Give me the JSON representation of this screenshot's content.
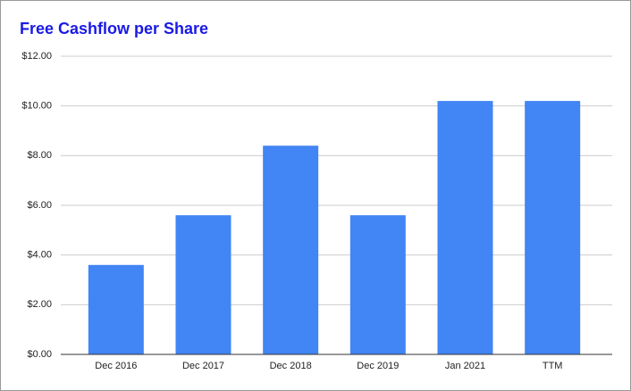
{
  "chart_data": {
    "type": "bar",
    "title": "Free Cashflow per Share",
    "categories": [
      "Dec 2016",
      "Dec 2017",
      "Dec 2018",
      "Dec 2019",
      "Jan 2021",
      "TTM"
    ],
    "values": [
      3.6,
      5.6,
      8.4,
      5.6,
      10.2,
      10.2
    ],
    "color": "#4285f4",
    "ylim": [
      0,
      12
    ],
    "yticks": [
      {
        "value": 0,
        "label": "$0.00"
      },
      {
        "value": 2,
        "label": "$2.00"
      },
      {
        "value": 4,
        "label": "$4.00"
      },
      {
        "value": 6,
        "label": "$6.00"
      },
      {
        "value": 8,
        "label": "$8.00"
      },
      {
        "value": 10,
        "label": "$10.00"
      },
      {
        "value": 12,
        "label": "$12.00"
      }
    ],
    "grid": true
  }
}
